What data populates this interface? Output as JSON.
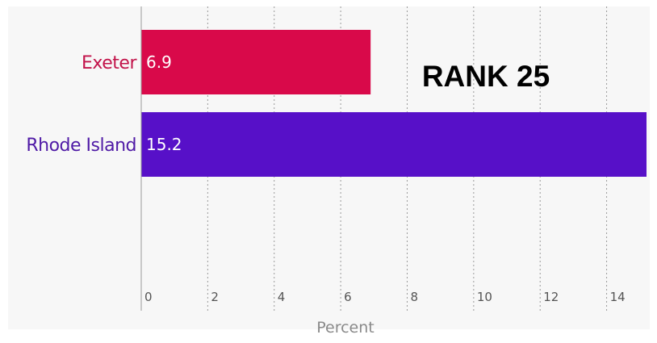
{
  "chart_data": {
    "type": "bar",
    "orientation": "horizontal",
    "categories": [
      "Exeter",
      "Rhode Island"
    ],
    "values": [
      6.9,
      15.2
    ],
    "value_labels": [
      "6.9",
      "15.2"
    ],
    "bar_colors": [
      "#d9094a",
      "#5710c8"
    ],
    "label_colors": [
      "#c2134a",
      "#4f1aa6"
    ],
    "xlabel": "Percent",
    "ylabel": "",
    "xlim": [
      0,
      15.2
    ],
    "x_ticks": [
      0,
      2,
      4,
      6,
      8,
      10,
      12,
      14
    ],
    "x_tick_labels": [
      "0",
      "2",
      "4",
      "6",
      "8",
      "10",
      "12",
      "14"
    ],
    "grid": "vertical dashed",
    "annotation": "RANK 25"
  },
  "colors": {
    "panel_background": "#f7f7f7",
    "grid": "#9a9a9a",
    "axis": "#9a9a9a"
  }
}
